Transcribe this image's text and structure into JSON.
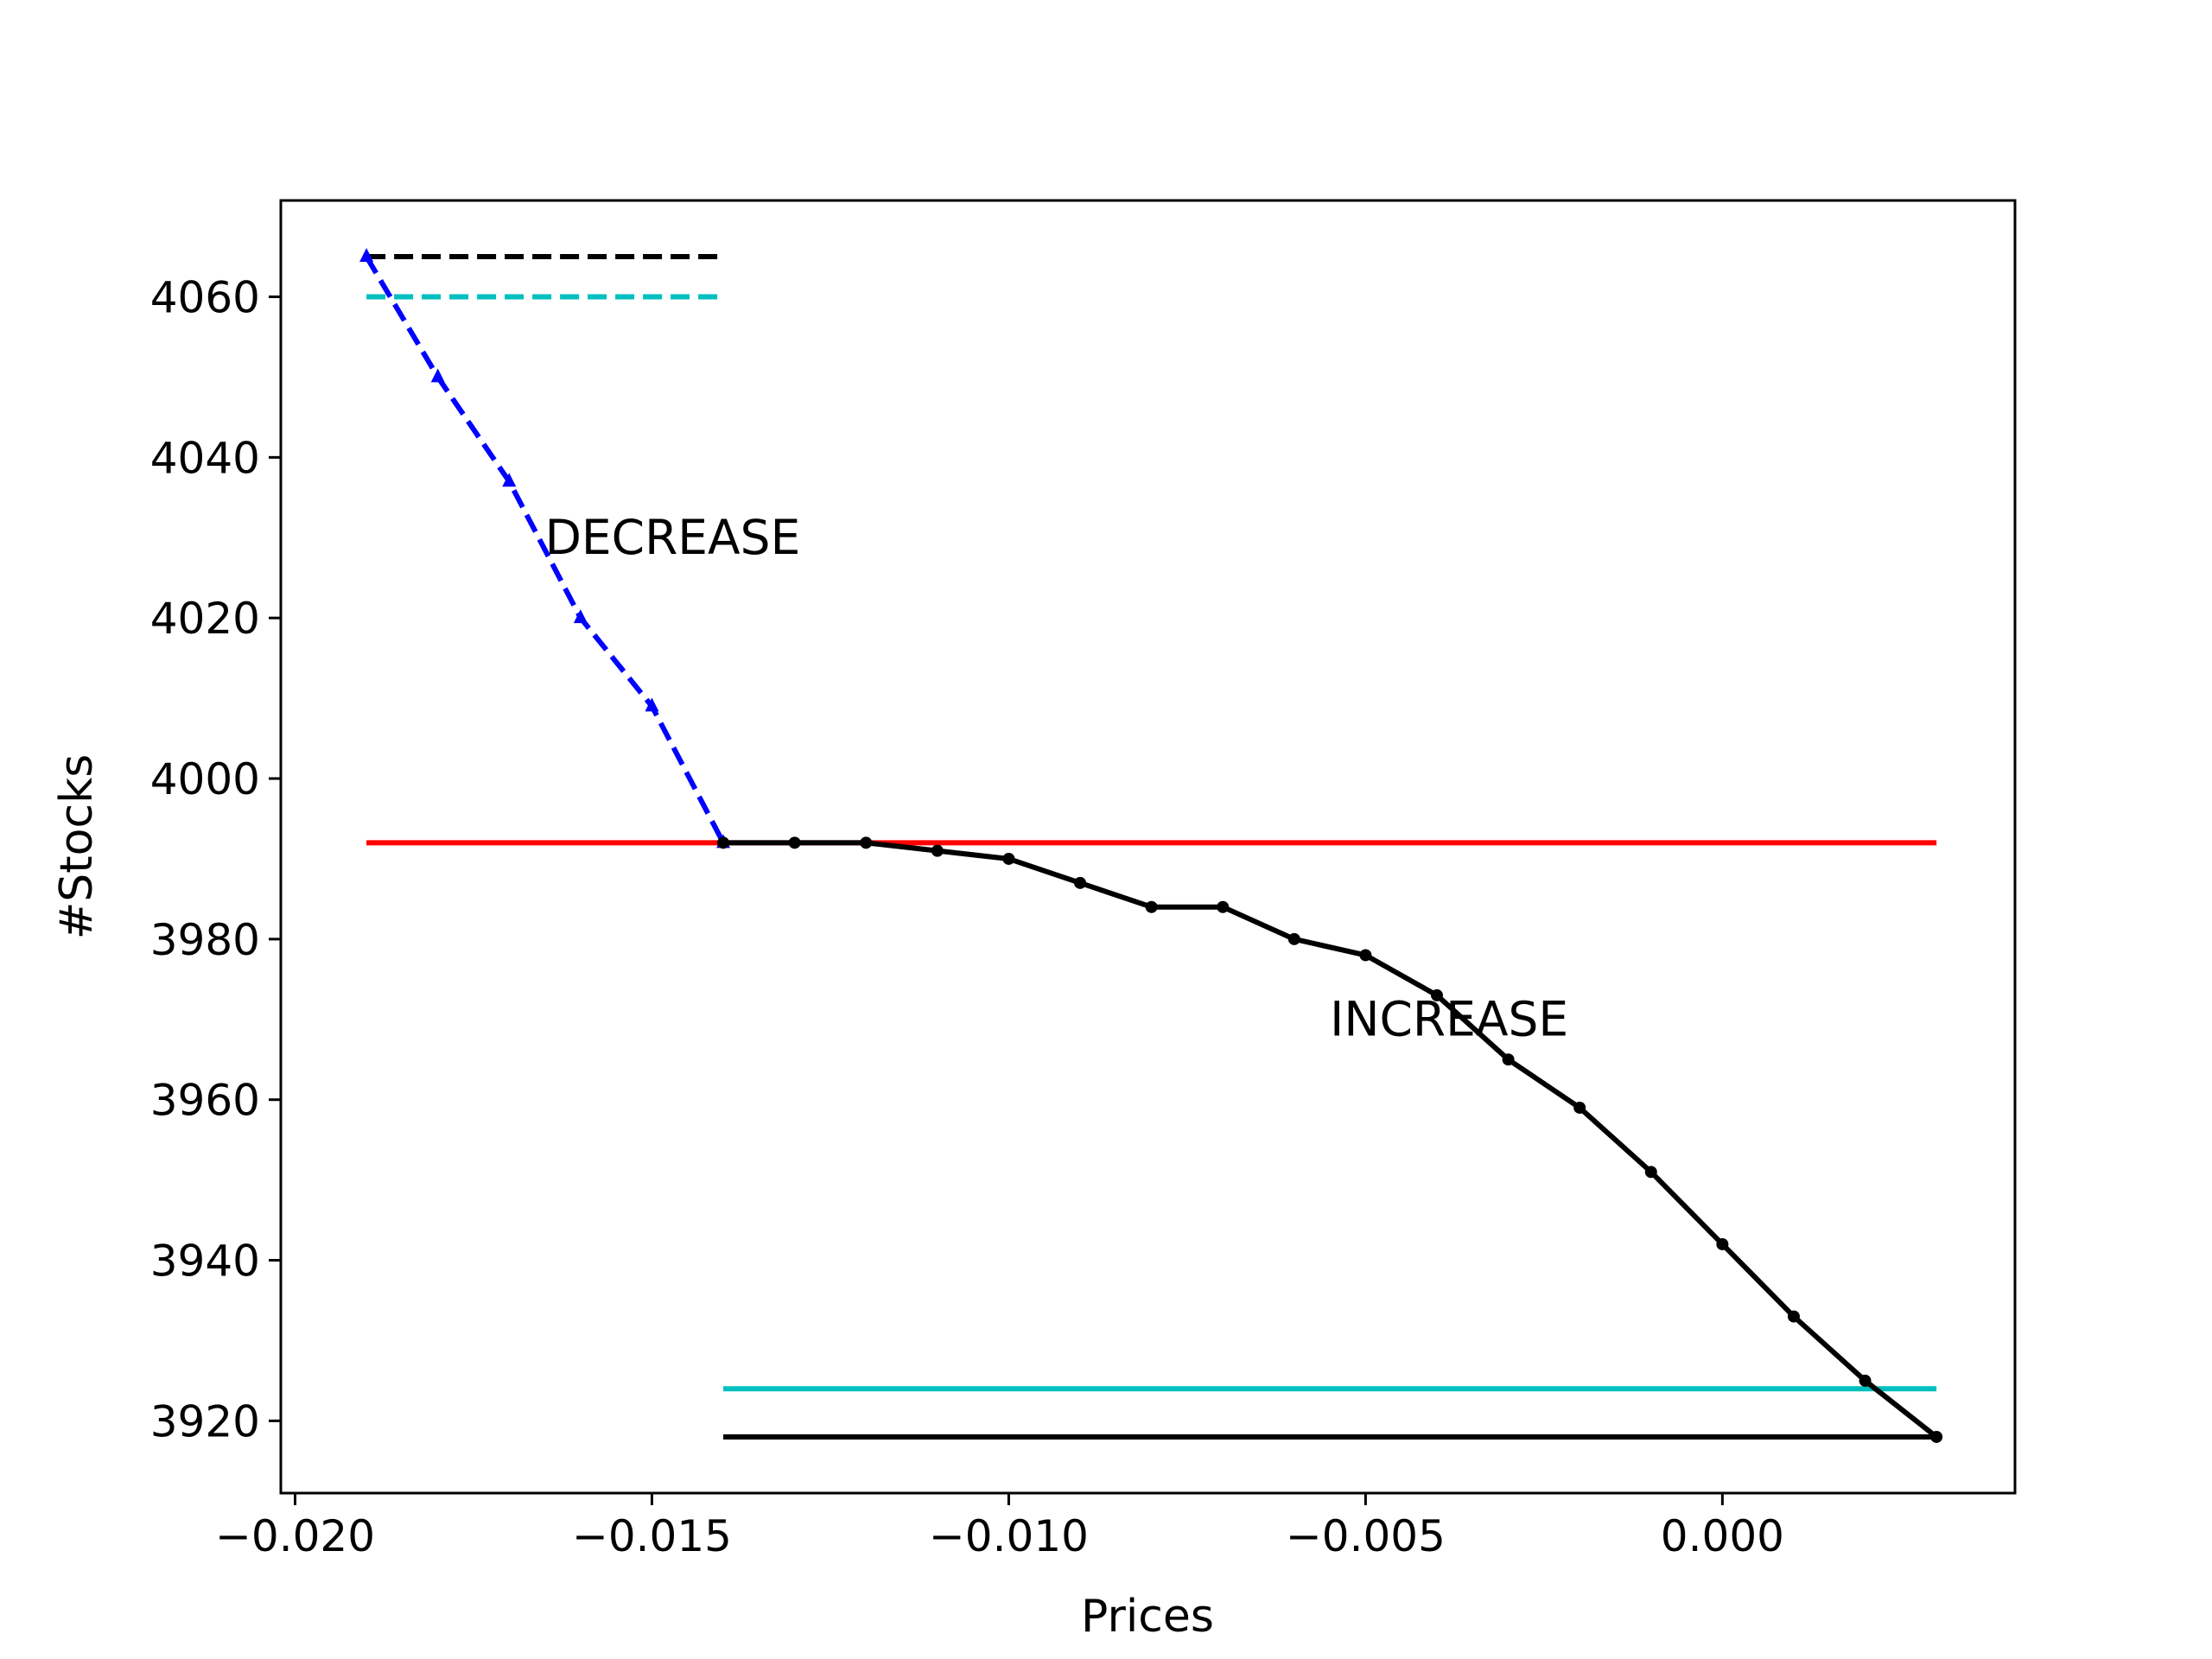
{
  "chart_data": {
    "type": "line",
    "title": "",
    "xlabel": "Prices",
    "ylabel": "#Stocks",
    "xlim": [
      -0.0202,
      0.0041
    ],
    "ylim": [
      3911,
      4072
    ],
    "xticks": [
      -0.02,
      -0.015,
      -0.01,
      -0.005,
      0.0
    ],
    "xtick_labels": [
      "−0.020",
      "−0.015",
      "−0.010",
      "−0.005",
      "0.000"
    ],
    "yticks": [
      3920,
      3940,
      3960,
      3980,
      4000,
      4020,
      4040,
      4060
    ],
    "ytick_labels": [
      "3920",
      "3940",
      "3960",
      "3980",
      "4000",
      "4020",
      "4040",
      "4060"
    ],
    "grid": false,
    "legend": false,
    "series": [
      {
        "color": "#0000ff",
        "style": "dashed",
        "marker": "triangle-up",
        "x": [
          -0.019,
          -0.018,
          -0.017,
          -0.016,
          -0.015,
          -0.014
        ],
        "y": [
          4065,
          4050,
          4037,
          4020,
          4009,
          3992
        ]
      },
      {
        "color": "#000000",
        "style": "solid",
        "marker": "dot",
        "x": [
          -0.014,
          -0.013,
          -0.012,
          -0.011,
          -0.01,
          -0.009,
          -0.008,
          -0.007,
          -0.006,
          -0.005,
          -0.004,
          -0.003,
          -0.002,
          -0.001,
          0.0,
          0.001,
          0.002,
          0.003
        ],
        "y": [
          3992,
          3992,
          3992,
          3991,
          3990,
          3987,
          3984,
          3984,
          3980,
          3978,
          3973,
          3965,
          3959,
          3951,
          3942,
          3933,
          3925,
          3918
        ]
      }
    ],
    "reference_lines": [
      {
        "color": "#000000",
        "style": "dashed",
        "x": [
          -0.019,
          -0.014
        ],
        "y": 4065
      },
      {
        "color": "#00bfbf",
        "style": "dashed",
        "x": [
          -0.019,
          -0.014
        ],
        "y": 4060
      },
      {
        "color": "#ff0000",
        "style": "solid",
        "x": [
          -0.019,
          0.003
        ],
        "y": 3992
      },
      {
        "color": "#00bfbf",
        "style": "solid",
        "x": [
          -0.014,
          0.003
        ],
        "y": 3924
      },
      {
        "color": "#000000",
        "style": "solid",
        "x": [
          -0.014,
          0.003
        ],
        "y": 3918
      }
    ],
    "annotations": [
      {
        "text": "DECREASE",
        "x": -0.0165,
        "y": 4028
      },
      {
        "text": "INCREASE",
        "x": -0.0055,
        "y": 3968
      }
    ]
  }
}
